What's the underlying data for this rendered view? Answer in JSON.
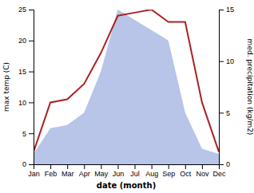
{
  "chart_data": {
    "type": "line",
    "categories": [
      "Jan",
      "Feb",
      "Mar",
      "Apr",
      "May",
      "Jun",
      "Jul",
      "Aug",
      "Sep",
      "Oct",
      "Nov",
      "Dec"
    ],
    "series": [
      {
        "type": "area",
        "axis": "y2",
        "color": "#b8c4e8",
        "values": [
          1,
          3.5,
          3.8,
          5,
          9,
          15,
          14,
          13,
          12,
          5,
          1.5,
          1
        ]
      },
      {
        "type": "line",
        "color": "#aa2222",
        "values": [
          2,
          10,
          10.5,
          13,
          18,
          24,
          24.5,
          25,
          23,
          23,
          10,
          2
        ]
      }
    ],
    "xlabel": "date (month)",
    "ylabel": "max temp (C)",
    "y2label": "med. precipitation (kg/m2)",
    "ylim": [
      0,
      25
    ],
    "yticks": [
      0,
      5,
      10,
      15,
      20,
      25
    ],
    "y2lim": [
      0,
      15
    ],
    "y2ticks": [
      0,
      5,
      10,
      15
    ],
    "grid": false
  }
}
